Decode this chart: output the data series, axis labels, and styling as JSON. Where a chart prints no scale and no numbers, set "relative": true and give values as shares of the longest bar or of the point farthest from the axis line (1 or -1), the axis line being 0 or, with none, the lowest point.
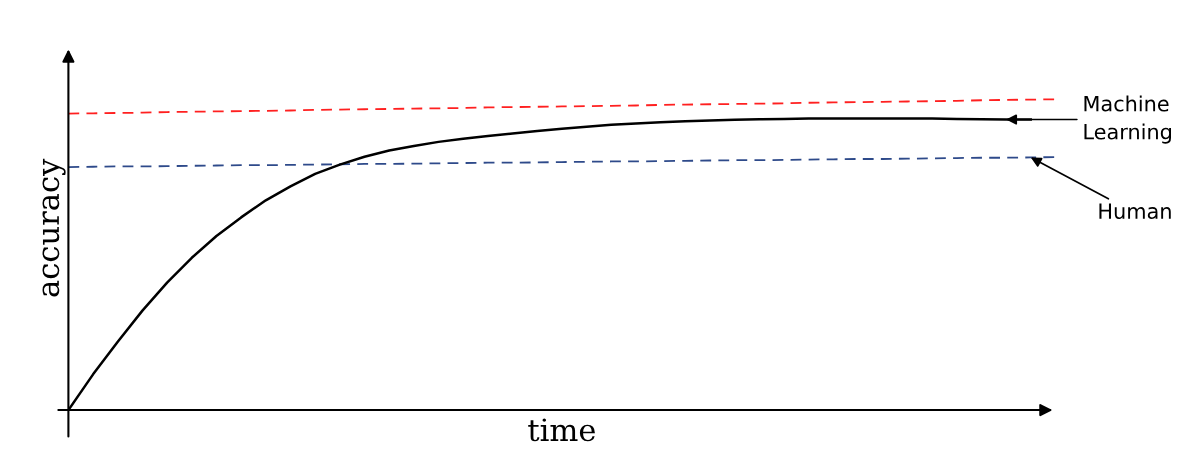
{
  "chart_data": {
    "type": "line",
    "relative": true,
    "xlabel": "time",
    "ylabel": "accuracy",
    "categories": [
      null,
      null,
      null,
      null,
      null,
      null,
      null,
      null,
      null,
      null,
      null,
      null,
      null,
      null,
      null,
      null,
      null,
      null,
      null,
      null,
      null,
      null,
      null,
      null,
      null,
      null,
      null,
      null,
      null,
      null,
      null,
      null,
      null,
      null,
      null,
      null,
      null,
      null,
      null,
      null,
      null
    ],
    "series": [
      {
        "color": "#ff2020",
        "line_style": "dashed",
        "values": [
          0.954,
          0.955,
          0.956,
          0.957,
          0.959,
          0.96,
          0.961,
          0.962,
          0.963,
          0.964,
          0.966,
          0.967,
          0.968,
          0.969,
          0.97,
          0.971,
          0.972,
          0.974,
          0.975,
          0.976,
          0.977,
          0.978,
          0.979,
          0.98,
          0.982,
          0.983,
          0.984,
          0.985,
          0.986,
          0.987,
          0.989,
          0.99,
          0.991,
          0.992,
          0.993,
          0.994,
          0.995,
          0.997,
          0.998,
          0.999,
          1.0
        ]
      },
      {
        "name": "Human",
        "color": "#2e4a8a",
        "line_style": "dashed",
        "values": [
          0.782,
          0.783,
          0.784,
          0.784,
          0.785,
          0.786,
          0.787,
          0.788,
          0.788,
          0.789,
          0.79,
          0.791,
          0.792,
          0.792,
          0.793,
          0.794,
          0.795,
          0.796,
          0.796,
          0.797,
          0.798,
          0.799,
          0.8,
          0.8,
          0.801,
          0.802,
          0.803,
          0.804,
          0.804,
          0.805,
          0.806,
          0.807,
          0.808,
          0.808,
          0.809,
          0.81,
          0.811,
          0.812,
          0.812,
          0.813,
          0.814
        ]
      },
      {
        "name": "Machine\nLearning",
        "color": "#000000",
        "line_style": "solid",
        "values": [
          0,
          0.115,
          0.22,
          0.32,
          0.41,
          0.49,
          0.56,
          0.62,
          0.675,
          0.72,
          0.76,
          0.79,
          0.815,
          0.835,
          0.85,
          0.863,
          0.873,
          0.882,
          0.89,
          0.898,
          0.905,
          0.912,
          0.918,
          0.922,
          0.926,
          0.929,
          0.932,
          0.934,
          0.936,
          0.937,
          0.938,
          0.938,
          0.938,
          0.938,
          0.938,
          0.938,
          0.937,
          0.936,
          0.935,
          0.935,
          null
        ]
      }
    ]
  }
}
